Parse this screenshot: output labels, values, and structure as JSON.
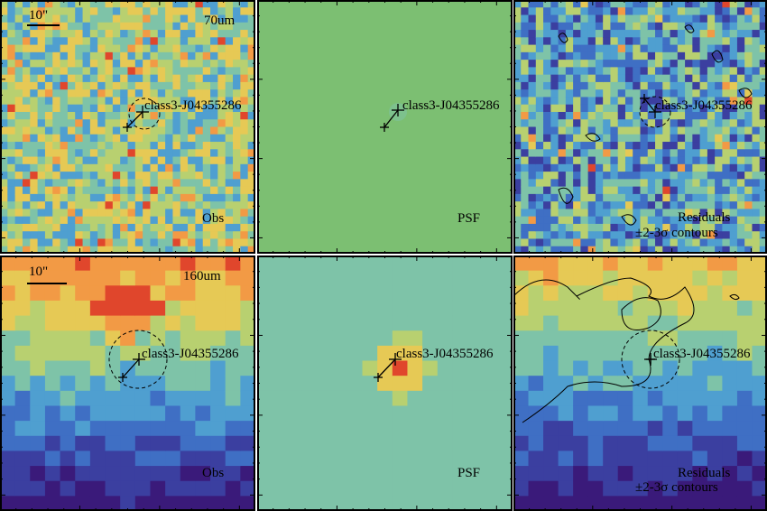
{
  "rows": [
    {
      "band": "70um",
      "scalebar": "10\"",
      "panels": [
        {
          "kind": "obs",
          "label": "Obs",
          "source": "class3-J04355286"
        },
        {
          "kind": "psf",
          "label": "PSF",
          "source": "class3-J04355286"
        },
        {
          "kind": "residual",
          "label": "Residuals",
          "sublabel": "±2-3σ contours",
          "source": "class3-J04355286"
        }
      ]
    },
    {
      "band": "160um",
      "scalebar": "10\"",
      "panels": [
        {
          "kind": "obs",
          "label": "Obs",
          "source": "class3-J04355286"
        },
        {
          "kind": "psf",
          "label": "PSF",
          "source": "class3-J04355286"
        },
        {
          "kind": "residual",
          "label": "Residuals",
          "sublabel": "±2-3σ contours",
          "source": "class3-J04355286"
        }
      ]
    }
  ],
  "colormap": [
    "#3a1a7a",
    "#3b3fa0",
    "#3f6fc4",
    "#4f9fd0",
    "#7ec3a8",
    "#b8d070",
    "#e6c955",
    "#f29a45",
    "#e0462c"
  ]
}
